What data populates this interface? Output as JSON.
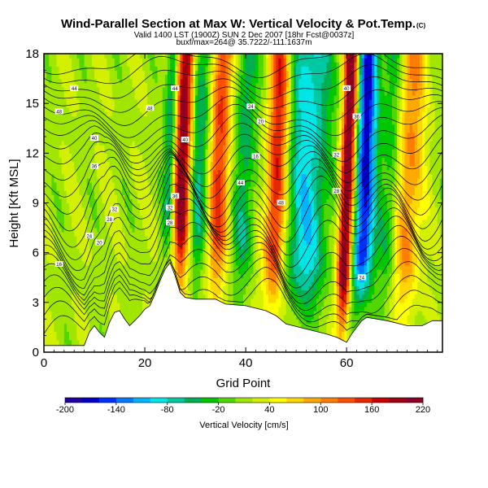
{
  "chart_data": {
    "type": "heatmap",
    "title": "Wind-Parallel Section at Max W: Vertical Velocity & Pot.Temp.",
    "title_suffix": "(C)",
    "subtitle_lines": [
      "Valid 1400 LST (1900Z) SUN 2 Dec 2007 [18hr Fcst@0037z]",
      "buxf/max=264@ 35.7222/-111.1637m"
    ],
    "xlabel": "Grid Point",
    "ylabel": "Height [Kft MSL]",
    "xlim": [
      0,
      79
    ],
    "ylim": [
      0,
      18
    ],
    "xticks": [
      0,
      20,
      40,
      60
    ],
    "yticks": [
      0,
      3,
      6,
      9,
      12,
      15,
      18
    ],
    "colorbar": {
      "label": "Vertical Velocity [cm/s]",
      "min": -200,
      "max": 220,
      "ticks": [
        -200,
        -140,
        -80,
        -20,
        40,
        100,
        160,
        220
      ],
      "colors": [
        "#1f00a0",
        "#0000c8",
        "#0030ff",
        "#0078ff",
        "#00b4ff",
        "#00e6e6",
        "#00c8a0",
        "#00b050",
        "#00c800",
        "#50d700",
        "#a0e600",
        "#d2f000",
        "#ffff00",
        "#ffd700",
        "#ffaa00",
        "#ff7d00",
        "#ff5000",
        "#e62800",
        "#c80000",
        "#a00014",
        "#8c0028"
      ]
    },
    "terrain_kft": [
      [
        0,
        0.4
      ],
      [
        8,
        0.4
      ],
      [
        9,
        1.2
      ],
      [
        10,
        1.6
      ],
      [
        11,
        1.2
      ],
      [
        12,
        0.9
      ],
      [
        13,
        1.8
      ],
      [
        14,
        2.4
      ],
      [
        15,
        2.5
      ],
      [
        16,
        2.0
      ],
      [
        17,
        1.6
      ],
      [
        18,
        1.9
      ],
      [
        19,
        2.2
      ],
      [
        20,
        2.6
      ],
      [
        21,
        2.8
      ],
      [
        22,
        3.5
      ],
      [
        23,
        4.3
      ],
      [
        24,
        5.0
      ],
      [
        25,
        5.4
      ],
      [
        26,
        4.6
      ],
      [
        27,
        3.6
      ],
      [
        28,
        3.3
      ],
      [
        30,
        3.2
      ],
      [
        34,
        3.2
      ],
      [
        36,
        2.9
      ],
      [
        40,
        2.8
      ],
      [
        44,
        2.5
      ],
      [
        46,
        2.2
      ],
      [
        48,
        1.7
      ],
      [
        52,
        1.4
      ],
      [
        56,
        1.1
      ],
      [
        58,
        0.9
      ],
      [
        60,
        0.6
      ],
      [
        61,
        1.1
      ],
      [
        63,
        1.9
      ],
      [
        64,
        2.1
      ],
      [
        68,
        1.9
      ],
      [
        72,
        1.6
      ],
      [
        75,
        1.6
      ],
      [
        77,
        1.9
      ],
      [
        79,
        1.9
      ]
    ],
    "updraft_bands": [
      {
        "x0": 26,
        "x1": 28.5,
        "peak_cm_s": 200
      },
      {
        "x0": 33,
        "x1": 36,
        "peak_cm_s": 130
      },
      {
        "x0": 44.5,
        "x1": 47.5,
        "peak_cm_s": 150
      },
      {
        "x0": 59,
        "x1": 61,
        "peak_cm_s": 220
      },
      {
        "x0": 70,
        "x1": 74,
        "peak_cm_s": 90
      }
    ],
    "downdraft_bands": [
      {
        "x0": 24,
        "x1": 25.5,
        "peak_cm_s": -90
      },
      {
        "x0": 29,
        "x1": 32,
        "peak_cm_s": -80
      },
      {
        "x0": 38,
        "x1": 41,
        "peak_cm_s": -70
      },
      {
        "x0": 49,
        "x1": 55,
        "peak_cm_s": -110
      },
      {
        "x0": 62,
        "x1": 65,
        "peak_cm_s": -180
      },
      {
        "x0": 67,
        "x1": 70,
        "peak_cm_s": -60
      }
    ],
    "potential_temperature_labels": [
      "44",
      "48",
      "40",
      "36",
      "32",
      "28",
      "24",
      "20",
      "16"
    ]
  }
}
